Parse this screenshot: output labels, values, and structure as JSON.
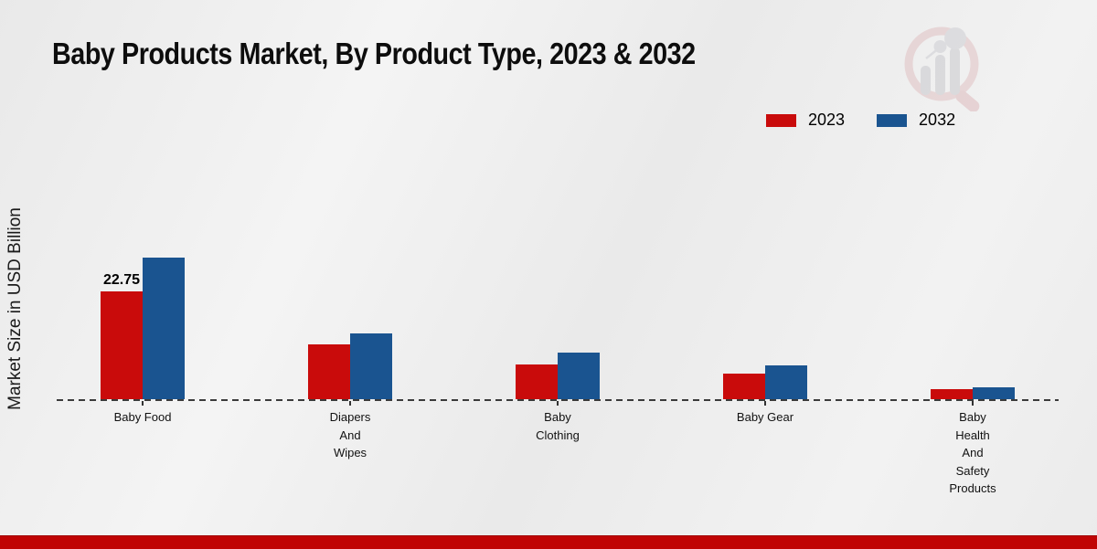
{
  "title": "Baby Products Market, By Product Type, 2023 & 2032",
  "ylabel": "Market Size in USD Billion",
  "legend": [
    {
      "label": "2023",
      "color": "#c90b0b"
    },
    {
      "label": "2032",
      "color": "#1a5490"
    }
  ],
  "colors": {
    "series_2023": "#c90b0b",
    "series_2032": "#1a5490",
    "footer_strip": "#c00404",
    "baseline": "#2b2b2b",
    "background": "#efefef"
  },
  "watermark_icon": "magnifier-bar-chart-logo",
  "chart_data": {
    "type": "bar",
    "title": "Baby Products Market, By Product Type, 2023 & 2032",
    "xlabel": "",
    "ylabel": "Market Size in USD Billion",
    "categories": [
      "Baby Food",
      "Diapers And Wipes",
      "Baby Clothing",
      "Baby Gear",
      "Baby Health And Safety Products"
    ],
    "category_label_lines": [
      [
        "Baby Food"
      ],
      [
        "Diapers",
        "And",
        "Wipes"
      ],
      [
        "Baby",
        "Clothing"
      ],
      [
        "Baby Gear"
      ],
      [
        "Baby",
        "Health",
        "And",
        "Safety",
        "Products"
      ]
    ],
    "series": [
      {
        "name": "2023",
        "color": "#c90b0b",
        "values": [
          22.75,
          11.6,
          7.3,
          5.4,
          2.05
        ]
      },
      {
        "name": "2032",
        "color": "#1a5490",
        "values": [
          29.9,
          13.8,
          9.8,
          7.1,
          2.6
        ]
      }
    ],
    "data_labels": [
      {
        "series": "2023",
        "category": "Baby Food",
        "text": "22.75"
      }
    ],
    "ylim": [
      0,
      32
    ],
    "grid": false,
    "legend_position": "top-right",
    "baseline_style": "dashed"
  }
}
